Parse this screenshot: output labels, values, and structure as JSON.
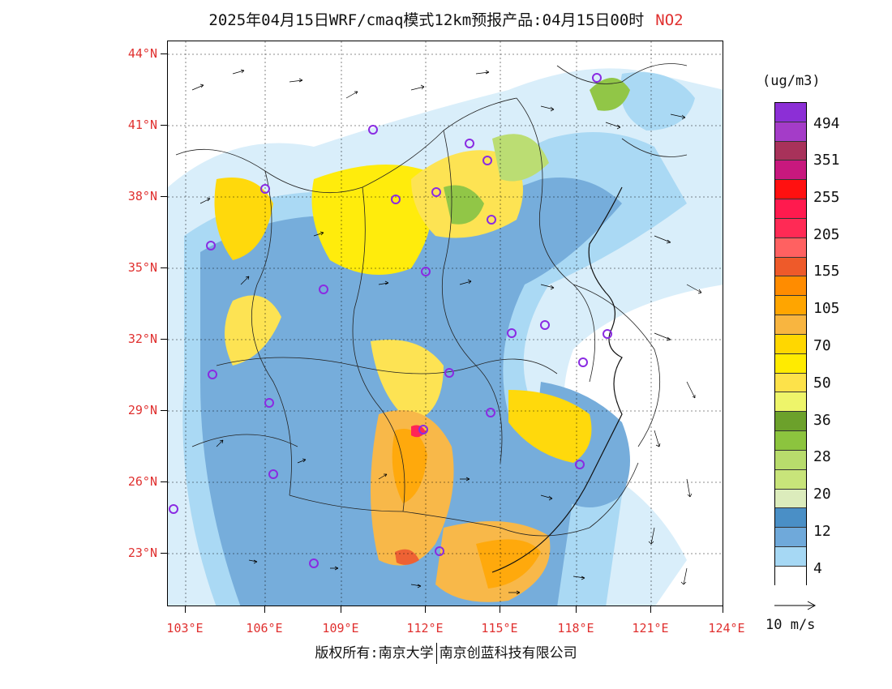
{
  "title": {
    "text": "2025年04月15日WRF/cmaq模式12km预报产品:04月15日00时",
    "species": "NO2"
  },
  "map": {
    "lat_labels": [
      "44°N",
      "41°N",
      "38°N",
      "35°N",
      "32°N",
      "29°N",
      "26°N",
      "23°N"
    ],
    "lon_labels": [
      "103°E",
      "106°E",
      "109°E",
      "112°E",
      "115°E",
      "118°E",
      "121°E",
      "124°E"
    ],
    "colors": {
      "axis_label": "#e0302f",
      "station_marker": "#8a2be2"
    }
  },
  "colorbar": {
    "unit": "(ug/m3)",
    "labels": [
      "494",
      "351",
      "255",
      "205",
      "155",
      "105",
      "70",
      "50",
      "36",
      "28",
      "20",
      "12",
      "4"
    ],
    "colors": [
      "#8c2fd6",
      "#a43cc8",
      "#a8325a",
      "#c8187e",
      "#ff1010",
      "#ff1a4e",
      "#ff6161",
      "#ee5a2a",
      "#ff8c00",
      "#ffa500",
      "#f8b540",
      "#ffd700",
      "#ffeb00",
      "#fde24a",
      "#eef56a",
      "#6ca12b",
      "#8cc43e",
      "#b8dc6c",
      "#c8e47a",
      "#dcecbc",
      "#4a8fc6",
      "#6fa9da",
      "#a6d8f4",
      "#d8eefa",
      "#ffffff"
    ]
  },
  "vector": {
    "label": "10 m/s"
  },
  "footer": {
    "left": "版权所有:南京大学",
    "right": "南京创蓝科技有限公司"
  }
}
